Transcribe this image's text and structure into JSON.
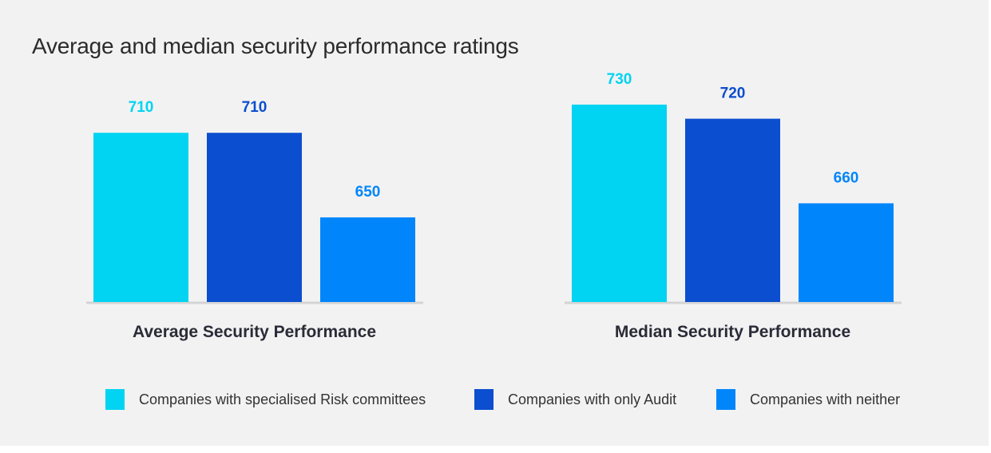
{
  "title": "Average and median security performance ratings",
  "colors": {
    "risk": "#00d4f2",
    "audit": "#0b4ecf",
    "neither": "#0086fa",
    "axis": "#d4d4d4",
    "group_label": "#2b2b38"
  },
  "chart_data": {
    "type": "bar",
    "title": "Average and median security performance ratings",
    "categories": [
      "Average Security Performance",
      "Median Security Performance"
    ],
    "series": [
      {
        "name": "Companies with specialised Risk committees",
        "key": "risk",
        "values": [
          710,
          730
        ]
      },
      {
        "name": "Companies with only Audit",
        "key": "audit",
        "values": [
          710,
          720
        ]
      },
      {
        "name": "Companies with neither",
        "key": "neither",
        "values": [
          650,
          660
        ]
      }
    ],
    "xlabel": "",
    "ylabel": "",
    "ylim": [
      590,
      760
    ],
    "grid": false,
    "legend_position": "bottom"
  },
  "legend": [
    {
      "label": "Companies with specialised Risk committees",
      "key": "risk"
    },
    {
      "label": "Companies with only Audit",
      "key": "audit"
    },
    {
      "label": "Companies with neither",
      "key": "neither"
    }
  ]
}
